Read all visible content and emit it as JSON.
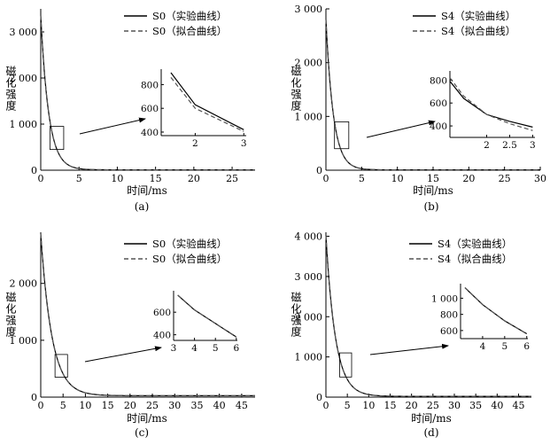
{
  "figure": {
    "panel_labels": [
      "(a)",
      "(b)",
      "(c)",
      "(d)"
    ]
  },
  "chart_data": [
    {
      "type": "line",
      "panel": "(a)",
      "xlabel": "时间/ms",
      "ylabel": "磁化强度",
      "xlim": [
        0,
        28
      ],
      "ylim": [
        0,
        3500
      ],
      "xticks": [
        0,
        5,
        10,
        15,
        20,
        25
      ],
      "yticks": [
        0,
        1000,
        2000,
        3000
      ],
      "xtick_labels": [
        "0",
        "5",
        "10",
        "15",
        "20",
        "25"
      ],
      "ytick_labels": [
        "0",
        "1 000",
        "2 000",
        "3 000"
      ],
      "legend": {
        "placement": "top-right",
        "entries": [
          "S0（实验曲线）",
          "S0（拟合曲线）"
        ]
      },
      "curve": {
        "A": 3350,
        "k": 0.96,
        "c": 8
      },
      "zoom_box": {
        "x": [
          1.2,
          3.0
        ],
        "y": [
          450,
          950
        ]
      },
      "series": [
        {
          "name": "S0（实验曲线）",
          "style": "solid",
          "color": "#000000"
        },
        {
          "name": "S0（拟合曲线）",
          "style": "dashed",
          "color": "#555555"
        }
      ],
      "inset": {
        "xlim": [
          1.3,
          3.05
        ],
        "ylim": [
          370,
          930
        ],
        "xticks": [
          2,
          3
        ],
        "yticks": [
          400,
          600,
          800
        ],
        "xtick_labels": [
          "2",
          "3"
        ],
        "ytick_labels": [
          "400",
          "600",
          "800"
        ],
        "series": [
          {
            "name": "S0（实验曲线）",
            "x": [
              1.5,
              2.0,
              3.0
            ],
            "y": [
              900,
              630,
              420
            ]
          },
          {
            "name": "S0（拟合曲线）",
            "x": [
              1.5,
              2.0,
              3.0
            ],
            "y": [
              860,
              600,
              405
            ]
          }
        ]
      }
    },
    {
      "type": "line",
      "panel": "(b)",
      "xlabel": "时间/ms",
      "ylabel": "磁化强度",
      "xlim": [
        0,
        30
      ],
      "ylim": [
        0,
        3000
      ],
      "xticks": [
        0,
        5,
        10,
        15,
        20,
        25,
        30
      ],
      "yticks": [
        0,
        1000,
        2000,
        3000
      ],
      "xtick_labels": [
        "0",
        "5",
        "10",
        "15",
        "20",
        "25",
        "30"
      ],
      "ytick_labels": [
        "0",
        "1 000",
        "2 000",
        "3 000"
      ],
      "legend": {
        "placement": "top-right",
        "entries": [
          "S4（实验曲线）",
          "S4（拟合曲线）"
        ]
      },
      "curve": {
        "A": 2800,
        "k": 0.96,
        "c": 6
      },
      "zoom_box": {
        "x": [
          1.2,
          3.2
        ],
        "y": [
          400,
          900
        ]
      },
      "series": [
        {
          "name": "S4（实验曲线）",
          "style": "solid",
          "color": "#000000"
        },
        {
          "name": "S4（拟合曲线）",
          "style": "dashed",
          "color": "#555555"
        }
      ],
      "inset": {
        "xlim": [
          1.2,
          3.05
        ],
        "ylim": [
          300,
          880
        ],
        "xticks": [
          2,
          2.5,
          3
        ],
        "yticks": [
          400,
          600,
          800
        ],
        "xtick_labels": [
          "2",
          "2.5",
          "3"
        ],
        "ytick_labels": [
          "400",
          "600",
          "800"
        ],
        "series": [
          {
            "name": "S4（实验曲线）",
            "x": [
              1.2,
              1.5,
              2.0,
              2.5,
              3.0
            ],
            "y": [
              790,
              640,
              500,
              440,
              390
            ]
          },
          {
            "name": "S4（拟合曲线）",
            "x": [
              1.2,
              1.5,
              2.0,
              2.5,
              3.0
            ],
            "y": [
              820,
              660,
              500,
              420,
              360
            ]
          }
        ]
      }
    },
    {
      "type": "line",
      "panel": "(c)",
      "xlabel": "时间/ms",
      "ylabel": "磁化强度",
      "xlim": [
        0,
        48
      ],
      "ylim": [
        0,
        2900
      ],
      "xticks": [
        0,
        5,
        10,
        15,
        20,
        25,
        30,
        35,
        40,
        45
      ],
      "yticks": [
        0,
        1000,
        2000
      ],
      "xtick_labels": [
        "0",
        "5",
        "10",
        "15",
        "20",
        "25",
        "30",
        "35",
        "40",
        "45"
      ],
      "ytick_labels": [
        "0",
        "1 000",
        "2 000"
      ],
      "legend": {
        "placement": "top-right",
        "entries": [
          "S0（实验曲线）",
          "S0（拟合曲线）"
        ]
      },
      "curve": {
        "A": 2850,
        "k": 0.4,
        "c": 25
      },
      "zoom_box": {
        "x": [
          3.2,
          6.0
        ],
        "y": [
          350,
          750
        ]
      },
      "series": [
        {
          "name": "S0（实验曲线）",
          "style": "solid",
          "color": "#000000"
        },
        {
          "name": "S0（拟合曲线）",
          "style": "dashed",
          "color": "#555555"
        }
      ],
      "inset": {
        "xlim": [
          3,
          6.05
        ],
        "ylim": [
          350,
          790
        ],
        "xticks": [
          3,
          4,
          5,
          6
        ],
        "yticks": [
          400,
          600
        ],
        "xtick_labels": [
          "3",
          "4",
          "5",
          "6"
        ],
        "ytick_labels": [
          "400",
          "600"
        ],
        "series": [
          {
            "name": "S0（实验曲线）",
            "x": [
              3.2,
              4.0,
              5.0,
              6.0
            ],
            "y": [
              750,
              620,
              500,
              380
            ]
          },
          {
            "name": "S0（拟合曲线）",
            "x": [
              3.2,
              4.0,
              5.0,
              6.0
            ],
            "y": [
              752,
              621,
              499,
              379
            ]
          }
        ]
      }
    },
    {
      "type": "line",
      "panel": "(d)",
      "xlabel": "时间/ms",
      "ylabel": "磁化强度",
      "xlim": [
        0,
        48
      ],
      "ylim": [
        0,
        4100
      ],
      "xticks": [
        0,
        5,
        10,
        15,
        20,
        25,
        30,
        35,
        40,
        45
      ],
      "yticks": [
        0,
        1000,
        2000,
        3000,
        4000
      ],
      "xtick_labels": [
        "0",
        "5",
        "10",
        "15",
        "20",
        "25",
        "30",
        "35",
        "40",
        "45"
      ],
      "ytick_labels": [
        "0",
        "1 000",
        "2 000",
        "3 000",
        "4 000"
      ],
      "legend": {
        "placement": "top-right",
        "entries": [
          "S4（实验曲线）",
          "S4（拟合曲线）"
        ]
      },
      "curve": {
        "A": 4000,
        "k": 0.45,
        "c": 20
      },
      "zoom_box": {
        "x": [
          3.2,
          6.0
        ],
        "y": [
          500,
          1100
        ]
      },
      "series": [
        {
          "name": "S4（实验曲线）",
          "style": "solid",
          "color": "#000000"
        },
        {
          "name": "S4（拟合曲线）",
          "style": "dashed",
          "color": "#555555"
        }
      ],
      "inset": {
        "xlim": [
          3,
          6.05
        ],
        "ylim": [
          500,
          1180
        ],
        "xticks": [
          4,
          5,
          6
        ],
        "yticks": [
          600,
          800,
          1000
        ],
        "xtick_labels": [
          "4",
          "5",
          "6"
        ],
        "ytick_labels": [
          "600",
          "800",
          "1 000"
        ],
        "series": [
          {
            "name": "S4（实验曲线）",
            "x": [
              3.2,
              4.0,
              5.0,
              6.0
            ],
            "y": [
              1130,
              920,
              720,
              560
            ]
          },
          {
            "name": "S4（拟合曲线）",
            "x": [
              3.2,
              4.0,
              5.0,
              6.0
            ],
            "y": [
              1132,
              921,
              719,
              559
            ]
          }
        ]
      }
    }
  ]
}
